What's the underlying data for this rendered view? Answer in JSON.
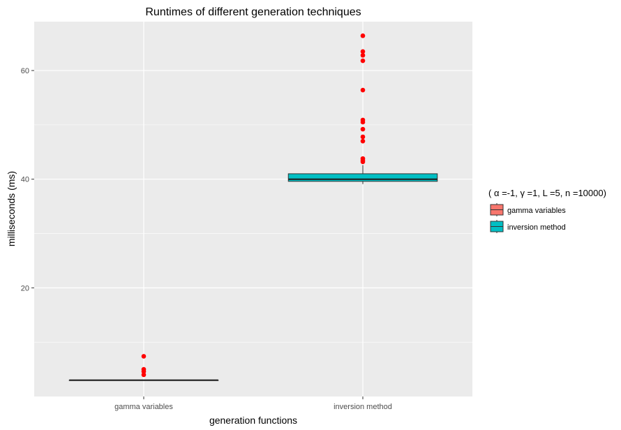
{
  "chart_data": {
    "type": "boxplot",
    "title": "Runtimes of different generation techniques",
    "xlabel": "generation functions",
    "ylabel": "milliseconds (ms)",
    "ylim": [
      0,
      69
    ],
    "y_major_ticks": [
      20,
      40,
      60
    ],
    "y_minor_ticks": [
      10,
      30,
      50
    ],
    "grid": true,
    "legend_position": "right",
    "legend_title": "( α =-1, γ =1, L =5, n =10000)",
    "categories": [
      "gamma variables",
      "inversion method"
    ],
    "boxes": [
      {
        "name": "gamma variables",
        "color": "#F8766D",
        "whisker_low": 3.0,
        "q1": 3.0,
        "median": 3.0,
        "q3": 3.0,
        "whisker_high": 3.0,
        "outliers": [
          4.0,
          4.6,
          5.0,
          7.4
        ]
      },
      {
        "name": "inversion method",
        "color": "#00BFC4",
        "whisker_low": 39.1,
        "q1": 39.6,
        "median": 40.0,
        "q3": 41.0,
        "whisker_high": 42.6,
        "outliers": [
          43.2,
          43.5,
          43.8,
          47.0,
          47.8,
          49.2,
          50.5,
          50.9,
          56.4,
          61.8,
          62.8,
          63.5,
          66.4
        ]
      }
    ],
    "outlier_color": "#FF0000"
  }
}
